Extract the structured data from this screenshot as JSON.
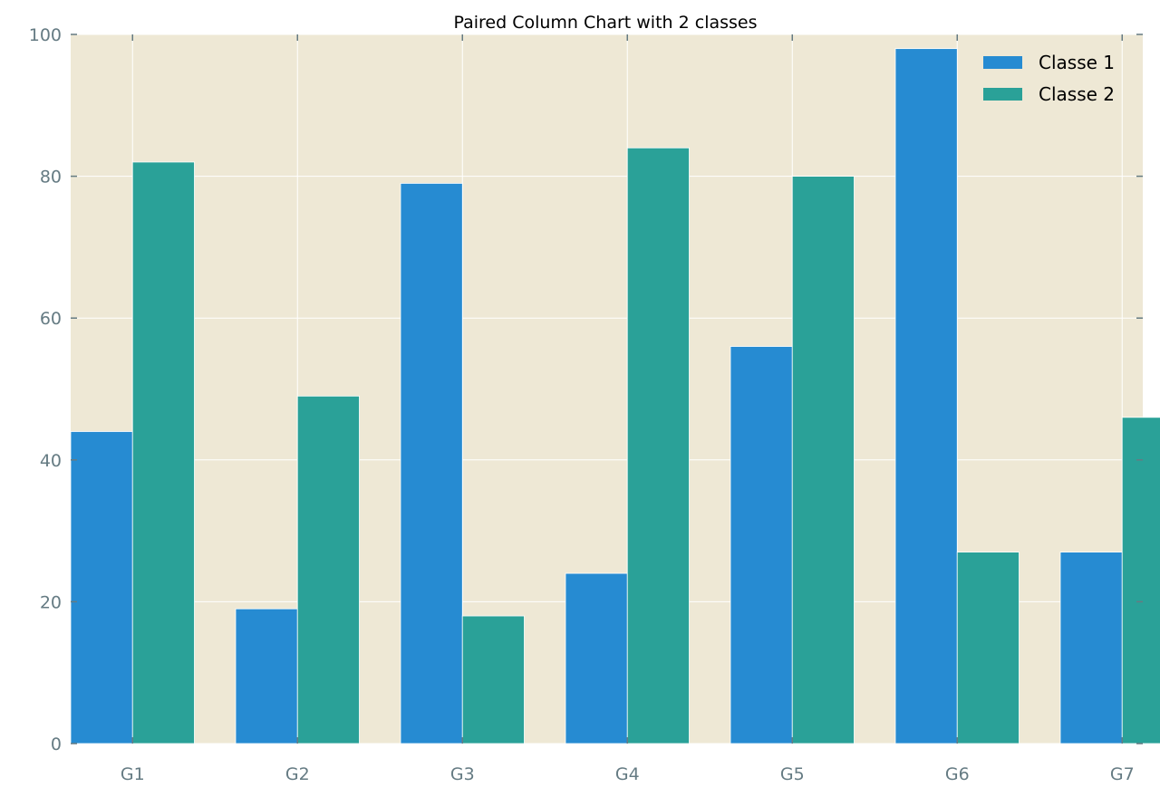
{
  "chart_data": {
    "type": "bar",
    "title": "Paired Column Chart with 2 classes",
    "xlabel": "",
    "ylabel": "",
    "categories": [
      "G1",
      "G2",
      "G3",
      "G4",
      "G5",
      "G6",
      "G7"
    ],
    "series": [
      {
        "name": "Classe 1",
        "values": [
          44,
          19,
          79,
          24,
          56,
          98,
          27
        ]
      },
      {
        "name": "Classe 2",
        "values": [
          82,
          49,
          18,
          84,
          80,
          27,
          46
        ]
      }
    ],
    "ylim": [
      0,
      100
    ],
    "yticks": [
      "0",
      "20",
      "40",
      "60",
      "80",
      "100"
    ],
    "grid": true,
    "legend_position": "top-right",
    "colors": {
      "series": [
        "#268bd2",
        "#2aa198"
      ],
      "background": "#eee8d5",
      "grid": "#ffffff",
      "tick_text": "#657b83",
      "axis": "#657b83"
    }
  }
}
